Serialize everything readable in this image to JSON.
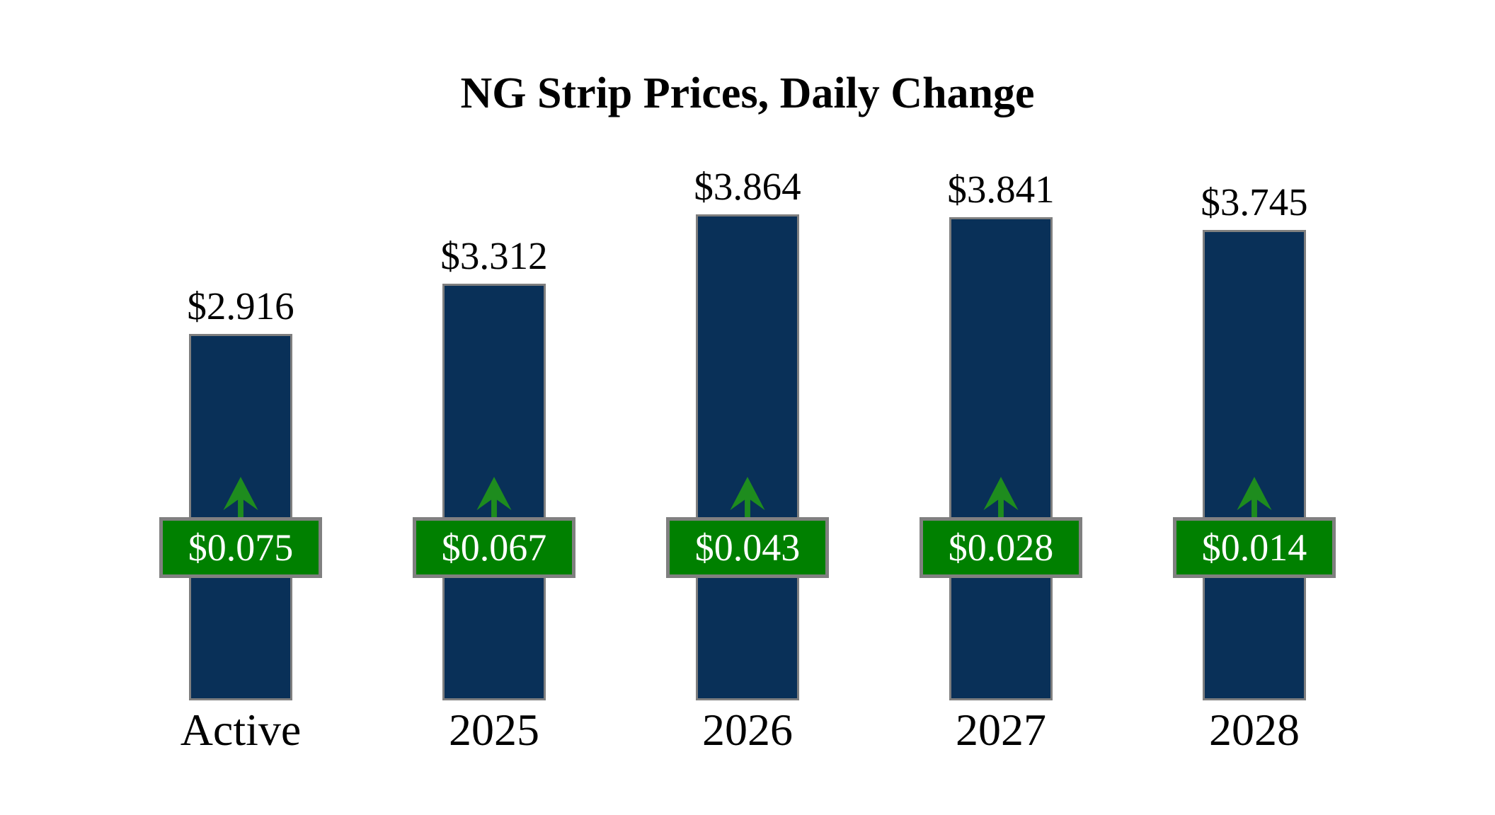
{
  "chart_data": {
    "type": "bar",
    "title": "NG Strip Prices, Daily Change",
    "categories": [
      "Active",
      "2025",
      "2026",
      "2027",
      "2028"
    ],
    "series": [
      {
        "name": "Strip Price",
        "values": [
          2.916,
          3.312,
          3.864,
          3.841,
          3.745
        ],
        "labels": [
          "$2.916",
          "$3.312",
          "$3.864",
          "$3.841",
          "$3.745"
        ]
      },
      {
        "name": "Daily Change",
        "direction": "up",
        "values": [
          0.075,
          0.067,
          0.043,
          0.028,
          0.014
        ],
        "labels": [
          "$0.075",
          "$0.067",
          "$0.043",
          "$0.028",
          "$0.014"
        ]
      }
    ],
    "ylim": [
      0,
      3.864
    ],
    "grid": false,
    "axes_visible": false,
    "legend": false,
    "value_labels_position": "above-bar",
    "change_badge_position": "mid-bar"
  },
  "colors": {
    "bar_fill": "#093058",
    "bar_border": "#7f7f7f",
    "badge_fill": "#008000",
    "badge_border": "#808080",
    "arrow_fill": "#1e8c1e",
    "text": "#000000",
    "badge_text": "#ffffff",
    "background": "#ffffff"
  }
}
